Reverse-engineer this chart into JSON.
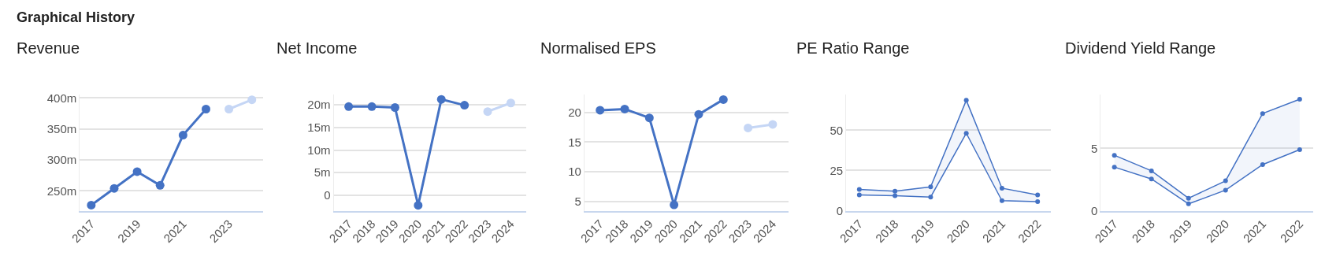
{
  "chart_data": [
    {
      "type": "line",
      "title": "Revenue",
      "annotations": [
        "Graphical History"
      ],
      "x": [
        2017,
        2018,
        2019,
        2020,
        2021,
        2022,
        2023,
        2024
      ],
      "xlim": [
        2016.5,
        2024.5
      ],
      "xticks": [
        2017,
        2019,
        2021,
        2023
      ],
      "ylim": [
        218,
        405
      ],
      "yticks": [
        {
          "value": 250,
          "label": "250m"
        },
        {
          "value": 300,
          "label": "300m"
        },
        {
          "value": 350,
          "label": "350m"
        },
        {
          "value": 400,
          "label": "400m"
        }
      ],
      "grid": "y",
      "marker": "circle",
      "series": [
        {
          "color": "#4472c4",
          "values": [
            227,
            254,
            281,
            259,
            340,
            382,
            null,
            null
          ]
        },
        {
          "color": "#c5d6f5",
          "values": [
            null,
            null,
            null,
            null,
            null,
            null,
            382,
            397
          ]
        }
      ]
    },
    {
      "type": "line",
      "title": "Net Income",
      "categories": [
        "2017",
        "2018",
        "2019",
        "2020",
        "2021",
        "2022",
        "2023",
        "2024"
      ],
      "ylim": [
        -3.4,
        22.2
      ],
      "yticks": [
        0,
        {
          "value": 5,
          "label": "5m"
        },
        {
          "value": 10,
          "label": "10m"
        },
        {
          "value": 15,
          "label": "15m"
        },
        {
          "value": 20,
          "label": "20m"
        }
      ],
      "grid": "y",
      "marker": "circle",
      "series": [
        {
          "color": "#4472c4",
          "values": [
            19.6,
            19.6,
            19.4,
            -2.2,
            21.2,
            19.9,
            null,
            null
          ]
        },
        {
          "color": "#c5d6f5",
          "values": [
            null,
            null,
            null,
            null,
            null,
            null,
            18.5,
            20.4
          ]
        }
      ]
    },
    {
      "type": "line",
      "title": "Normalised EPS",
      "categories": [
        "2017",
        "2018",
        "2019",
        "2020",
        "2021",
        "2022",
        "2023",
        "2024"
      ],
      "ylim": [
        3.4,
        23
      ],
      "yticks": [
        5,
        10,
        15,
        20
      ],
      "grid": "y",
      "marker": "circle",
      "series": [
        {
          "color": "#4472c4",
          "values": [
            20.4,
            20.6,
            19.1,
            4.4,
            19.7,
            22.2,
            null,
            null
          ]
        },
        {
          "color": "#c5d6f5",
          "values": [
            null,
            null,
            null,
            null,
            null,
            null,
            17.4,
            18.0
          ]
        }
      ]
    },
    {
      "type": "line",
      "title": "PE Ratio Range",
      "categories": [
        "2017",
        "2018",
        "2019",
        "2020",
        "2021",
        "2022"
      ],
      "ylim": [
        0,
        72
      ],
      "yticks": [
        0,
        25,
        50
      ],
      "grid": "y",
      "marker": "circle",
      "series": [
        {
          "color": "#4472c4",
          "values": [
            9.8,
            9.3,
            8.5,
            48.1,
            6.2,
            5.6
          ]
        },
        {
          "type": "area",
          "color": "#4472c4",
          "values": [
            13.2,
            12.1,
            14.8,
            68.6,
            14.0,
            9.8
          ]
        }
      ]
    },
    {
      "type": "line",
      "title": "Dividend Yield Range",
      "categories": [
        "2017",
        "2018",
        "2019",
        "2020",
        "2021",
        "2022"
      ],
      "ylim": [
        0,
        9.3
      ],
      "yticks": [
        0,
        5
      ],
      "grid": "y",
      "marker": "circle",
      "series": [
        {
          "color": "#4472c4",
          "values": [
            3.5,
            2.55,
            0.55,
            1.65,
            3.7,
            4.9
          ]
        },
        {
          "type": "area",
          "color": "#4472c4",
          "values": [
            4.45,
            3.2,
            1.0,
            2.4,
            7.8,
            8.95
          ]
        }
      ]
    }
  ]
}
